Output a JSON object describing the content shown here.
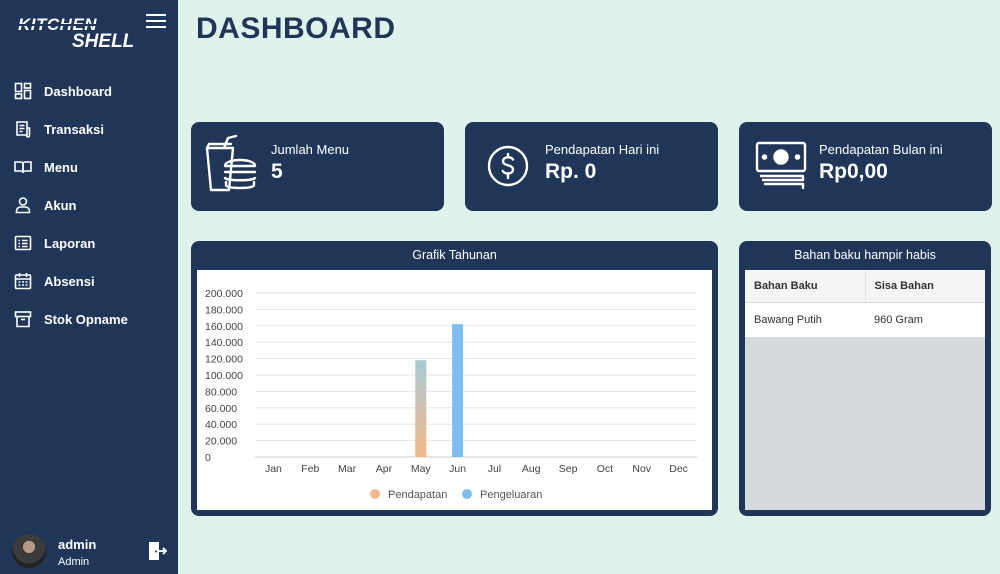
{
  "sidebar": {
    "logo_line1": "KITCHEN",
    "logo_line2": "SHELL",
    "items": [
      {
        "label": "Dashboard",
        "icon": "dashboard-icon"
      },
      {
        "label": "Transaksi",
        "icon": "receipt-icon"
      },
      {
        "label": "Menu",
        "icon": "book-icon"
      },
      {
        "label": "Akun",
        "icon": "user-icon"
      },
      {
        "label": "Laporan",
        "icon": "report-icon"
      },
      {
        "label": "Absensi",
        "icon": "calendar-icon"
      },
      {
        "label": "Stok Opname",
        "icon": "archive-icon"
      }
    ],
    "user": {
      "name": "admin",
      "role": "Admin"
    }
  },
  "header": {
    "title": "DASHBOARD"
  },
  "cards": [
    {
      "label": "Jumlah Menu",
      "value": "5",
      "icon": "food-menu-icon"
    },
    {
      "label": "Pendapatan Hari ini",
      "value": "Rp. 0",
      "icon": "dollar-coin-icon"
    },
    {
      "label": "Pendapatan Bulan ini",
      "value": "Rp0,00",
      "icon": "money-bill-icon"
    }
  ],
  "chart_panel": {
    "title": "Grafik Tahunan"
  },
  "table_panel": {
    "title": "Bahan baku hampir habis",
    "columns": [
      "Bahan Baku",
      "Sisa Bahan"
    ],
    "rows": [
      [
        "Bawang Putih",
        "960 Gram"
      ]
    ]
  },
  "chart_data": {
    "type": "bar",
    "categories": [
      "Jan",
      "Feb",
      "Mar",
      "Apr",
      "May",
      "Jun",
      "Jul",
      "Aug",
      "Sep",
      "Oct",
      "Nov",
      "Dec"
    ],
    "y_tick_labels": [
      "0",
      "20.000",
      "40.000",
      "60.000",
      "80.000",
      "100.000",
      "120.000",
      "140.000",
      "160.000",
      "180.000",
      "200.000"
    ],
    "ylim": [
      0,
      200000
    ],
    "series": [
      {
        "name": "Pendapatan",
        "color": "#f2b98b",
        "values": [
          0,
          0,
          0,
          0,
          118000,
          0,
          0,
          0,
          0,
          0,
          0,
          0
        ]
      },
      {
        "name": "Pengeluaran",
        "color": "#7fbdf0",
        "values": [
          0,
          0,
          0,
          0,
          0,
          162000,
          0,
          0,
          0,
          0,
          0,
          0
        ]
      }
    ],
    "grid": true,
    "legend": "bottom"
  }
}
